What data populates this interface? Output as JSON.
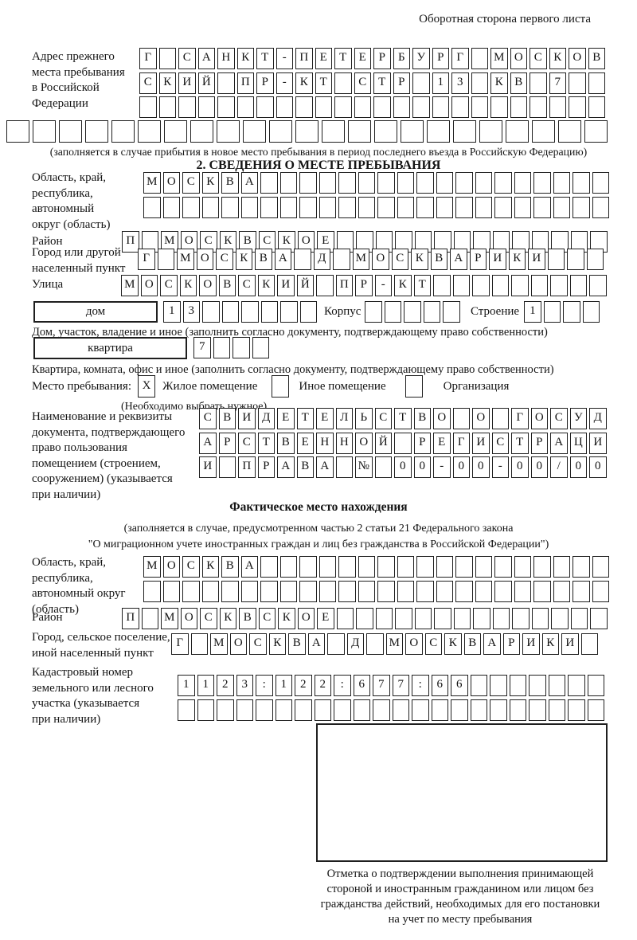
{
  "page": {
    "title": "Оборотная сторона первого листа"
  },
  "prev_address": {
    "label": "Адрес прежнего\nместа пребывания\nв Российской\nФедерации",
    "row1": {
      "len": 24,
      "text": "Г САНКТ-ПЕТЕРБУРГ МОСКОВ"
    },
    "row2": {
      "len": 24,
      "text": "СКИЙ ПР-КТ СТР 13 КВ 7"
    },
    "row3": {
      "len": 24,
      "text": ""
    },
    "row4": {
      "len": 23,
      "text": ""
    },
    "note": "(заполняется в случае прибытия в новое место пребывания в период последнего въезда в Российскую Федерацию)"
  },
  "section2": {
    "title": "2. СВЕДЕНИЯ О МЕСТЕ ПРЕБЫВАНИЯ",
    "region": {
      "label": "Область, край,\nреспублика,\nавтономный\nокруг (область)",
      "row1": {
        "len": 24,
        "text": "МОСКВА"
      },
      "row2": {
        "len": 24,
        "text": ""
      }
    },
    "district": {
      "label": "Район",
      "row": {
        "len": 25,
        "text": "П МОСКВСКОЕ"
      }
    },
    "city": {
      "label": "Город или другой\nнаселенный пункт",
      "row": {
        "len": 24,
        "text": "Г МОСКВА Д МОСКВАРИКИ"
      }
    },
    "street": {
      "label": "Улица",
      "row": {
        "len": 25,
        "text": "МОСКОВСКИЙ ПР-КТ"
      }
    },
    "house": {
      "box_label": "дом",
      "number": {
        "len": 8,
        "text": "13"
      },
      "korpus_label": "Корпус",
      "korpus": {
        "len": 5,
        "text": ""
      },
      "stroenie_label": "Строение",
      "stroenie": {
        "len": 4,
        "text": "1"
      },
      "note": "Дом, участок, владение и иное (заполнить согласно документу, подтверждающему право собственности)"
    },
    "apartment": {
      "box_label": "квартира",
      "number": {
        "len": 4,
        "text": "7"
      },
      "note": "Квартира, комната, офис и иное (заполнить согласно документу, подтверждающему право собственности)"
    },
    "stay_type": {
      "label": "Место пребывания:",
      "residential": {
        "label": "Жилое помещение",
        "mark": "X"
      },
      "other": {
        "label": "Иное помещение",
        "mark": ""
      },
      "organization": {
        "label": "Организация",
        "mark": ""
      },
      "note": "(Необходимо выбрать нужное)"
    },
    "document": {
      "label": "Наименование и реквизиты\nдокумента, подтверждающего\nправо пользования\nпомещением (строением,\nсооружением) (указывается\nпри наличии)",
      "row1": {
        "len": 21,
        "text": "СВИДЕТЕЛЬСТВО О ГОСУД"
      },
      "row2": {
        "len": 21,
        "text": "АРСТВЕННОЙ РЕГИСТРАЦИ"
      },
      "row3": {
        "len": 21,
        "text": "И ПРАВА № 00-00-00/000"
      }
    }
  },
  "actual_location": {
    "title": "Фактическое место нахождения",
    "note": "(заполняется в случае, предусмотренном частью 2 статьи 21 Федерального закона\n\"О миграционном учете иностранных граждан и лиц без гражданства в Российской Федерации\")",
    "region": {
      "label": "Область, край,\nреспублика,\nавтономный округ\n(область)",
      "row1": {
        "len": 24,
        "text": "МОСКВА"
      },
      "row2": {
        "len": 24,
        "text": ""
      }
    },
    "district": {
      "label": "Район",
      "row": {
        "len": 25,
        "text": "П МОСКВСКОЕ"
      }
    },
    "city": {
      "label": "Город, сельское поселение,\nиной населенный пункт",
      "row": {
        "len": 22,
        "text": "Г МОСКВА Д МОСКВАРИКИ"
      }
    },
    "cadastral": {
      "label": "Кадастровый номер\nземельного или лесного\nучастка (указывается\nпри наличии)",
      "row1": {
        "len": 22,
        "text": "1123:122:677:66"
      },
      "row2": {
        "len": 22,
        "text": ""
      }
    }
  },
  "confirmation": {
    "note": "Отметка о подтверждении выполнения принимающей\nстороной и иностранным гражданином или лицом без\nгражданства действий, необходимых для его постановки\nна учет по месту пребывания"
  }
}
